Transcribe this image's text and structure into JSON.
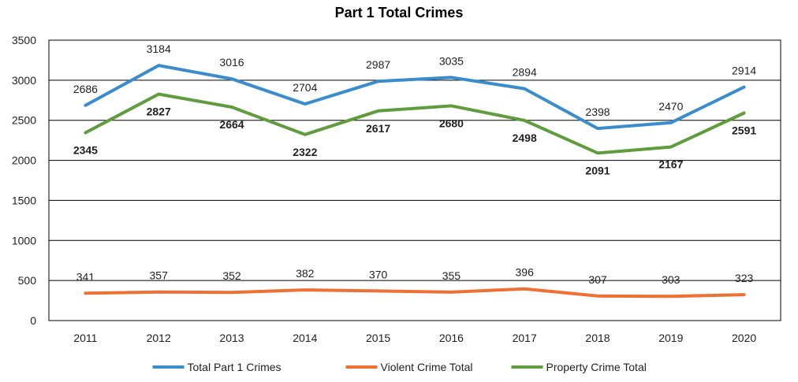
{
  "chart_data": {
    "type": "line",
    "title": "Part 1 Total Crimes",
    "xlabel": "",
    "ylabel": "",
    "categories": [
      "2011",
      "2012",
      "2013",
      "2014",
      "2015",
      "2016",
      "2017",
      "2018",
      "2019",
      "2020"
    ],
    "ylim": [
      0,
      3500
    ],
    "yticks": [
      0,
      500,
      1000,
      1500,
      2000,
      2500,
      3000,
      3500
    ],
    "grid": true,
    "legend_position": "bottom",
    "series": [
      {
        "name": "Total Part 1 Crimes",
        "color": "#3a8ccc",
        "values": [
          2686,
          3184,
          3016,
          2704,
          2987,
          3035,
          2894,
          2398,
          2470,
          2914
        ],
        "label_positions": [
          "above",
          "above",
          "above",
          "above",
          "above",
          "above",
          "above",
          "above",
          "above",
          "above"
        ]
      },
      {
        "name": "Violent Crime Total",
        "color": "#ee7035",
        "values": [
          341,
          357,
          352,
          382,
          370,
          355,
          396,
          307,
          303,
          323
        ],
        "label_positions": [
          "above",
          "above",
          "above",
          "above",
          "above",
          "above",
          "above",
          "above",
          "above",
          "above"
        ]
      },
      {
        "name": "Property Crime Total",
        "color": "#5e9c3d",
        "values": [
          2345,
          2827,
          2664,
          2322,
          2617,
          2680,
          2498,
          2091,
          2167,
          2591
        ],
        "label_positions": [
          "below",
          "below",
          "below",
          "below",
          "below",
          "below",
          "below",
          "below",
          "below",
          "below"
        ]
      }
    ]
  }
}
